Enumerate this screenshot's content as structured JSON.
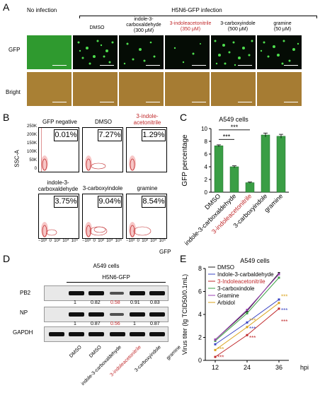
{
  "panel_labels": {
    "a": "A",
    "b": "B",
    "c": "C",
    "d": "D",
    "e": "E"
  },
  "panelA": {
    "no_infection": "No infection",
    "infection_header": "H5N6-GFP infection",
    "columns": [
      "DMSO",
      "indole-3-\ncarboxaldehyde\n(300 μM)",
      "3-indoleacetonitrile\n(350 μM)",
      "3-carboxyindole\n(500 μM)",
      "gramine\n(50 μM)"
    ],
    "rows": [
      "GFP",
      "Bright"
    ]
  },
  "panelB": {
    "ylabel": "SSC-A",
    "xlabel": "GFP",
    "yticks": [
      "250K",
      "200K",
      "150K",
      "100K",
      "50K",
      "0"
    ],
    "xticks": [
      "−10³",
      "0",
      "10³",
      "10⁴",
      "10⁵"
    ],
    "plots": [
      {
        "title": "GFP negative",
        "pct": "0.01%"
      },
      {
        "title": "DMSO",
        "pct": "7.27%"
      },
      {
        "title": "3-indole-\nacetonitrile",
        "pct": "1.29%"
      },
      {
        "title": "indole-3-\ncarboxaldehyde",
        "pct": "3.75%"
      },
      {
        "title": "3-carboxyindole",
        "pct": "9.04%"
      },
      {
        "title": "gramine",
        "pct": "8.54%"
      }
    ]
  },
  "chart_data": [
    {
      "type": "bar",
      "title": "A549 cells",
      "ylabel": "GFP percentage",
      "categories": [
        "DMSO",
        "indole-3-carboxaldehyde",
        "3-indoleacetonitrile",
        "3-carboxyindole",
        "gramine"
      ],
      "values": [
        7.3,
        4.0,
        1.5,
        9.0,
        8.8
      ],
      "errors": [
        0.15,
        0.15,
        0.1,
        0.3,
        0.3
      ],
      "ylim": [
        0,
        10
      ],
      "yticks": [
        0,
        2,
        4,
        6,
        8,
        10
      ],
      "bar_color": "#3a9e45",
      "significance": [
        "***",
        "***"
      ]
    },
    {
      "type": "line",
      "title": "A549 cells",
      "ylabel": "Virus titer (lg TCID50/0.1mL)",
      "xlabel": "hpi",
      "x": [
        12,
        24,
        36
      ],
      "ylim": [
        0,
        8
      ],
      "yticks": [
        0,
        2,
        4,
        6,
        8
      ],
      "series": [
        {
          "name": "DMSO",
          "color": "#222222",
          "values": [
            1.8,
            4.3,
            7.6
          ]
        },
        {
          "name": "Indole-3-carbaldehyde",
          "color": "#3b46c4",
          "values": [
            1.4,
            3.3,
            5.3
          ]
        },
        {
          "name": "3-Indoleacetonitrile",
          "color": "#c0292b",
          "values": [
            0.3,
            2.2,
            4.5
          ]
        },
        {
          "name": "3-carboxindole",
          "color": "#3a9e45",
          "values": [
            1.7,
            4.1,
            7.2
          ]
        },
        {
          "name": "Gramine",
          "color": "#9b3fb5",
          "values": [
            1.8,
            4.4,
            7.5
          ]
        },
        {
          "name": "Arbidol",
          "color": "#d9a21b",
          "values": [
            0.9,
            2.9,
            5.0
          ]
        }
      ],
      "star_labels": "***"
    }
  ],
  "panelD": {
    "title": "A549 cells",
    "infection": "H5N6-GFP",
    "rows": [
      "PB2",
      "NP",
      "GAPDH"
    ],
    "pb2_values": [
      "1",
      "0.82",
      "0.58",
      "0.91",
      "0.83"
    ],
    "np_values": [
      "1",
      "0.87",
      "0.56",
      "1",
      "0.87"
    ],
    "lanes": [
      "DMSO",
      "DMSO",
      "indole-3-carboxaldehyde",
      "3-indoleacetonitrile",
      "3-carboxyindole",
      "gramine"
    ]
  }
}
